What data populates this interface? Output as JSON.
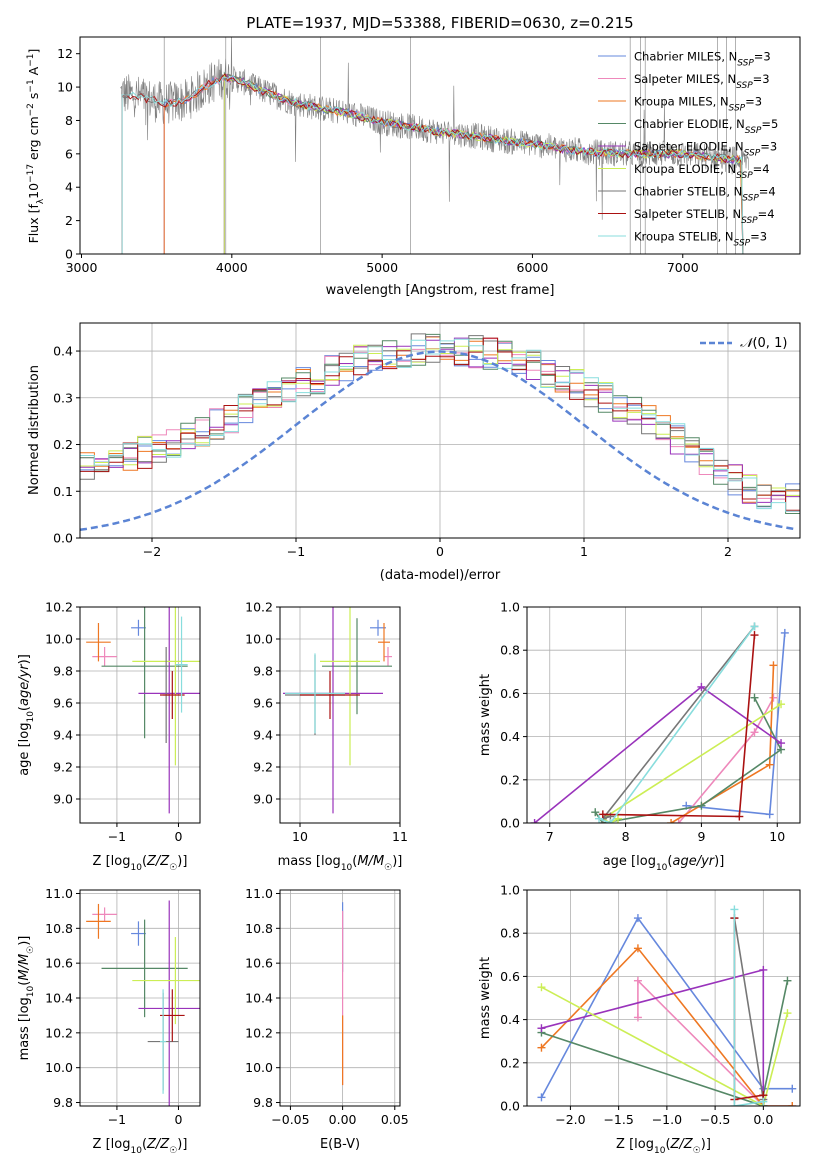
{
  "title": "PLATE=1937, MJD=53388, FIBERID=0630, z=0.215",
  "model_colors": [
    "#6688dd",
    "#ee88bb",
    "#ee7722",
    "#558866",
    "#9933bb",
    "#ccee55",
    "#777777",
    "#aa1111",
    "#88dddd"
  ],
  "chart_data": [
    {
      "id": "spectrum",
      "type": "line",
      "title": "PLATE=1937, MJD=53388, FIBERID=0630, z=0.215",
      "xlabel": "wavelength [Angstrom, rest frame]",
      "ylabel": "Flux [f_λ 10^-17 erg cm^-2 s^-1 A^-1]",
      "xlim": [
        2990,
        7780
      ],
      "ylim": [
        0,
        13
      ],
      "xticks": [
        3000,
        4000,
        5000,
        6000,
        7000
      ],
      "yticks": [
        0,
        2,
        4,
        6,
        8,
        10,
        12
      ],
      "legend_position": "upper right",
      "data_color": "#808080",
      "continuum": [
        [
          3270,
          9.6
        ],
        [
          3400,
          9.4
        ],
        [
          3550,
          9.0
        ],
        [
          3700,
          9.2
        ],
        [
          3850,
          10.2
        ],
        [
          3950,
          10.6
        ],
        [
          4050,
          10.4
        ],
        [
          4200,
          9.8
        ],
        [
          4400,
          9.1
        ],
        [
          4600,
          8.7
        ],
        [
          4800,
          8.4
        ],
        [
          5000,
          7.9
        ],
        [
          5200,
          7.6
        ],
        [
          5400,
          7.3
        ],
        [
          5600,
          7.1
        ],
        [
          5800,
          6.8
        ],
        [
          6000,
          6.6
        ],
        [
          6200,
          6.3
        ],
        [
          6400,
          6.1
        ],
        [
          6600,
          6.0
        ],
        [
          6800,
          6.0
        ],
        [
          7000,
          6.0
        ],
        [
          7200,
          5.8
        ],
        [
          7400,
          5.6
        ]
      ],
      "series": [
        {
          "name": "Chabrier MILES, N_SSP=3",
          "start": 3550
        },
        {
          "name": "Salpeter MILES, N_SSP=3",
          "start": 3550
        },
        {
          "name": "Kroupa MILES, N_SSP=3",
          "start": 3550
        },
        {
          "name": "Chabrier ELODIE, N_SSP=5",
          "start": 3950
        },
        {
          "name": "Salpeter ELODIE, N_SSP=3",
          "start": 3950
        },
        {
          "name": "Kroupa ELODIE, N_SSP=4",
          "start": 3950
        },
        {
          "name": "Chabrier STELIB, N_SSP=4",
          "start": 3270
        },
        {
          "name": "Salpeter STELIB, N_SSP=4",
          "start": 3270
        },
        {
          "name": "Kroupa STELIB, N_SSP=3",
          "start": 3270
        }
      ]
    },
    {
      "id": "residuals",
      "type": "line",
      "xlabel": "(data-model)/error",
      "ylabel": "Normed distribution",
      "xlim": [
        -2.5,
        2.5
      ],
      "ylim": [
        0,
        0.46
      ],
      "xticks": [
        -2,
        -1,
        0,
        1,
        2
      ],
      "yticks": [
        0.0,
        0.1,
        0.2,
        0.3,
        0.4
      ],
      "legend_position": "upper right",
      "reference": {
        "name": "N(0,1)",
        "color": "#5b84d4",
        "style": "dashed"
      }
    },
    {
      "id": "age_vs_Z",
      "type": "scatter",
      "xlabel": "Z [log10(Z/Z☉)]",
      "ylabel": "age [log10(age/yr)]",
      "xlim": [
        -1.6,
        0.35
      ],
      "ylim": [
        8.85,
        10.2
      ],
      "xticks": [
        -1,
        0
      ],
      "yticks": [
        9.0,
        9.2,
        9.4,
        9.6,
        9.8,
        10.0,
        10.2
      ],
      "points": [
        {
          "x": -0.65,
          "y": 10.07,
          "xerr": 0.12,
          "yerr": 0.05
        },
        {
          "x": -1.2,
          "y": 9.89,
          "xerr": 0.2,
          "yerr": 0.06
        },
        {
          "x": -1.3,
          "y": 9.98,
          "xerr": 0.2,
          "yerr": 0.12
        },
        {
          "x": -0.55,
          "y": 9.83,
          "xerr": 0.7,
          "yerr": 0.45
        },
        {
          "x": -0.15,
          "y": 9.66,
          "xerr": 0.5,
          "yerr": 0.75
        },
        {
          "x": -0.05,
          "y": 9.86,
          "xerr": 0.7,
          "yerr": 0.65
        },
        {
          "x": -0.2,
          "y": 9.65,
          "xerr": 0.05,
          "yerr": 0.3
        },
        {
          "x": -0.1,
          "y": 9.65,
          "xerr": 0.2,
          "yerr": 0.15
        },
        {
          "x": 0.05,
          "y": 9.84,
          "xerr": 0.1,
          "yerr": 0.3
        }
      ]
    },
    {
      "id": "age_vs_mass",
      "type": "scatter",
      "xlabel": "mass [log10(M/M☉)]",
      "ylabel": "",
      "xlim": [
        9.8,
        11.0
      ],
      "ylim": [
        8.85,
        10.2
      ],
      "xticks": [
        10,
        11
      ],
      "yticks": [
        9.0,
        9.2,
        9.4,
        9.6,
        9.8,
        10.0,
        10.2
      ],
      "points": [
        {
          "x": 10.78,
          "y": 10.07,
          "xerr": 0.08,
          "yerr": 0.05
        },
        {
          "x": 10.88,
          "y": 9.89,
          "xerr": 0.04,
          "yerr": 0.06
        },
        {
          "x": 10.84,
          "y": 9.98,
          "xerr": 0.06,
          "yerr": 0.12
        },
        {
          "x": 10.57,
          "y": 9.83,
          "xerr": 0.35,
          "yerr": 0.3
        },
        {
          "x": 10.33,
          "y": 9.66,
          "xerr": 0.5,
          "yerr": 0.75
        },
        {
          "x": 10.5,
          "y": 9.86,
          "xerr": 0.3,
          "yerr": 0.65
        },
        {
          "x": 10.15,
          "y": 9.65,
          "xerr": 0.3,
          "yerr": 0.25
        },
        {
          "x": 10.3,
          "y": 9.65,
          "xerr": 0.3,
          "yerr": 0.15
        },
        {
          "x": 10.15,
          "y": 9.66,
          "xerr": 0.3,
          "yerr": 0.25
        }
      ]
    },
    {
      "id": "weight_vs_age",
      "type": "line",
      "xlabel": "age [log10(age/yr)]",
      "ylabel": "mass weight",
      "xlim": [
        6.7,
        10.3
      ],
      "ylim": [
        0,
        1.0
      ],
      "xticks": [
        7,
        8,
        9,
        10
      ],
      "yticks": [
        0.0,
        0.2,
        0.4,
        0.6,
        0.8,
        1.0
      ],
      "series": [
        {
          "x": [
            10.1,
            9.9,
            8.8
          ],
          "y": [
            0.88,
            0.04,
            0.08
          ]
        },
        {
          "x": [
            9.95,
            9.7,
            8.7
          ],
          "y": [
            0.58,
            0.42,
            0.0
          ]
        },
        {
          "x": [
            9.95,
            9.9,
            8.6
          ],
          "y": [
            0.73,
            0.27,
            0.0
          ]
        },
        {
          "x": [
            9.7,
            10.05,
            9.0,
            7.7,
            7.6
          ],
          "y": [
            0.58,
            0.34,
            0.08,
            0.0,
            0.05
          ]
        },
        {
          "x": [
            6.8,
            9.0,
            10.05
          ],
          "y": [
            0.0,
            0.63,
            0.37
          ]
        },
        {
          "x": [
            10.05,
            7.7,
            7.8,
            7.9
          ],
          "y": [
            0.55,
            0.02,
            0.0,
            0.02
          ]
        },
        {
          "x": [
            7.8,
            7.7,
            9.7
          ],
          "y": [
            0.03,
            0.02,
            0.91
          ]
        },
        {
          "x": [
            9.7,
            9.5,
            7.7
          ],
          "y": [
            0.87,
            0.03,
            0.04
          ]
        },
        {
          "x": [
            9.7,
            7.8,
            7.65
          ],
          "y": [
            0.91,
            0.0,
            0.02
          ]
        }
      ]
    },
    {
      "id": "mass_vs_Z",
      "type": "scatter",
      "xlabel": "Z [log10(Z/Z☉)]",
      "ylabel": "mass [log10(M/M☉)]",
      "xlim": [
        -1.6,
        0.35
      ],
      "ylim": [
        9.78,
        11.02
      ],
      "xticks": [
        -1,
        0
      ],
      "yticks": [
        9.8,
        10.0,
        10.2,
        10.4,
        10.6,
        10.8,
        11.0
      ],
      "points": [
        {
          "x": -0.65,
          "y": 10.77,
          "xerr": 0.12,
          "yerr": 0.07
        },
        {
          "x": -1.2,
          "y": 10.88,
          "xerr": 0.2,
          "yerr": 0.04
        },
        {
          "x": -1.3,
          "y": 10.84,
          "xerr": 0.2,
          "yerr": 0.1
        },
        {
          "x": -0.55,
          "y": 10.57,
          "xerr": 0.7,
          "yerr": 0.28
        },
        {
          "x": -0.15,
          "y": 10.34,
          "xerr": 0.5,
          "yerr": 0.62
        },
        {
          "x": -0.05,
          "y": 10.5,
          "xerr": 0.7,
          "yerr": 0.25
        },
        {
          "x": -0.25,
          "y": 10.15,
          "xerr": 0.25,
          "yerr": 0.28
        },
        {
          "x": -0.1,
          "y": 10.3,
          "xerr": 0.2,
          "yerr": 0.15
        },
        {
          "x": -0.25,
          "y": 10.15,
          "xerr": 0.05,
          "yerr": 0.3
        }
      ]
    },
    {
      "id": "mass_vs_ebv",
      "type": "scatter",
      "xlabel": "E(B-V)",
      "ylabel": "",
      "xlim": [
        -0.06,
        0.055
      ],
      "ylim": [
        9.78,
        11.02
      ],
      "xticks": [
        -0.05,
        0.0,
        0.05
      ],
      "yticks": [
        9.8,
        10.0,
        10.2,
        10.4,
        10.6,
        10.8,
        11.0
      ],
      "points": [
        {
          "x": 0.0,
          "y": 10.75,
          "xerr": 0,
          "yerr": 0.2
        },
        {
          "x": 0.0,
          "y": 10.4,
          "xerr": 0,
          "yerr": 0.5
        },
        {
          "x": 0.0,
          "y": 10.1,
          "xerr": 0,
          "yerr": 0.2
        }
      ]
    },
    {
      "id": "weight_vs_Z",
      "type": "line",
      "xlabel": "Z [log10(Z/Z☉)]",
      "ylabel": "mass weight",
      "xlim": [
        -2.45,
        0.38
      ],
      "ylim": [
        0,
        1.0
      ],
      "xticks": [
        -2.0,
        -1.5,
        -1.0,
        -0.5,
        0.0
      ],
      "yticks": [
        0.0,
        0.2,
        0.4,
        0.6,
        0.8,
        1.0
      ],
      "series": [
        {
          "x": [
            -2.3,
            -1.3,
            0.0,
            0.3
          ],
          "y": [
            0.04,
            0.87,
            0.08,
            0.08
          ]
        },
        {
          "x": [
            -1.3,
            -1.3,
            0.0,
            0.3
          ],
          "y": [
            0.41,
            0.58,
            0.0,
            0.0
          ]
        },
        {
          "x": [
            -2.3,
            -1.3,
            0.0,
            0.3
          ],
          "y": [
            0.27,
            0.73,
            0.0,
            0.0
          ]
        },
        {
          "x": [
            -2.3,
            0.0,
            0.0,
            0.25
          ],
          "y": [
            0.34,
            0.0,
            0.05,
            0.58
          ]
        },
        {
          "x": [
            -2.3,
            0.0,
            0.0
          ],
          "y": [
            0.36,
            0.63,
            0.0
          ]
        },
        {
          "x": [
            -2.3,
            0.0,
            0.25
          ],
          "y": [
            0.55,
            0.0,
            0.43
          ]
        },
        {
          "x": [
            -0.3,
            0.0,
            0.0
          ],
          "y": [
            0.87,
            0.03,
            0.0
          ]
        },
        {
          "x": [
            -0.3,
            -0.3,
            0.0
          ],
          "y": [
            0.87,
            0.03,
            0.05
          ]
        },
        {
          "x": [
            -0.3,
            -0.3,
            0.0
          ],
          "y": [
            0.91,
            0.0,
            0.02
          ]
        }
      ]
    }
  ]
}
